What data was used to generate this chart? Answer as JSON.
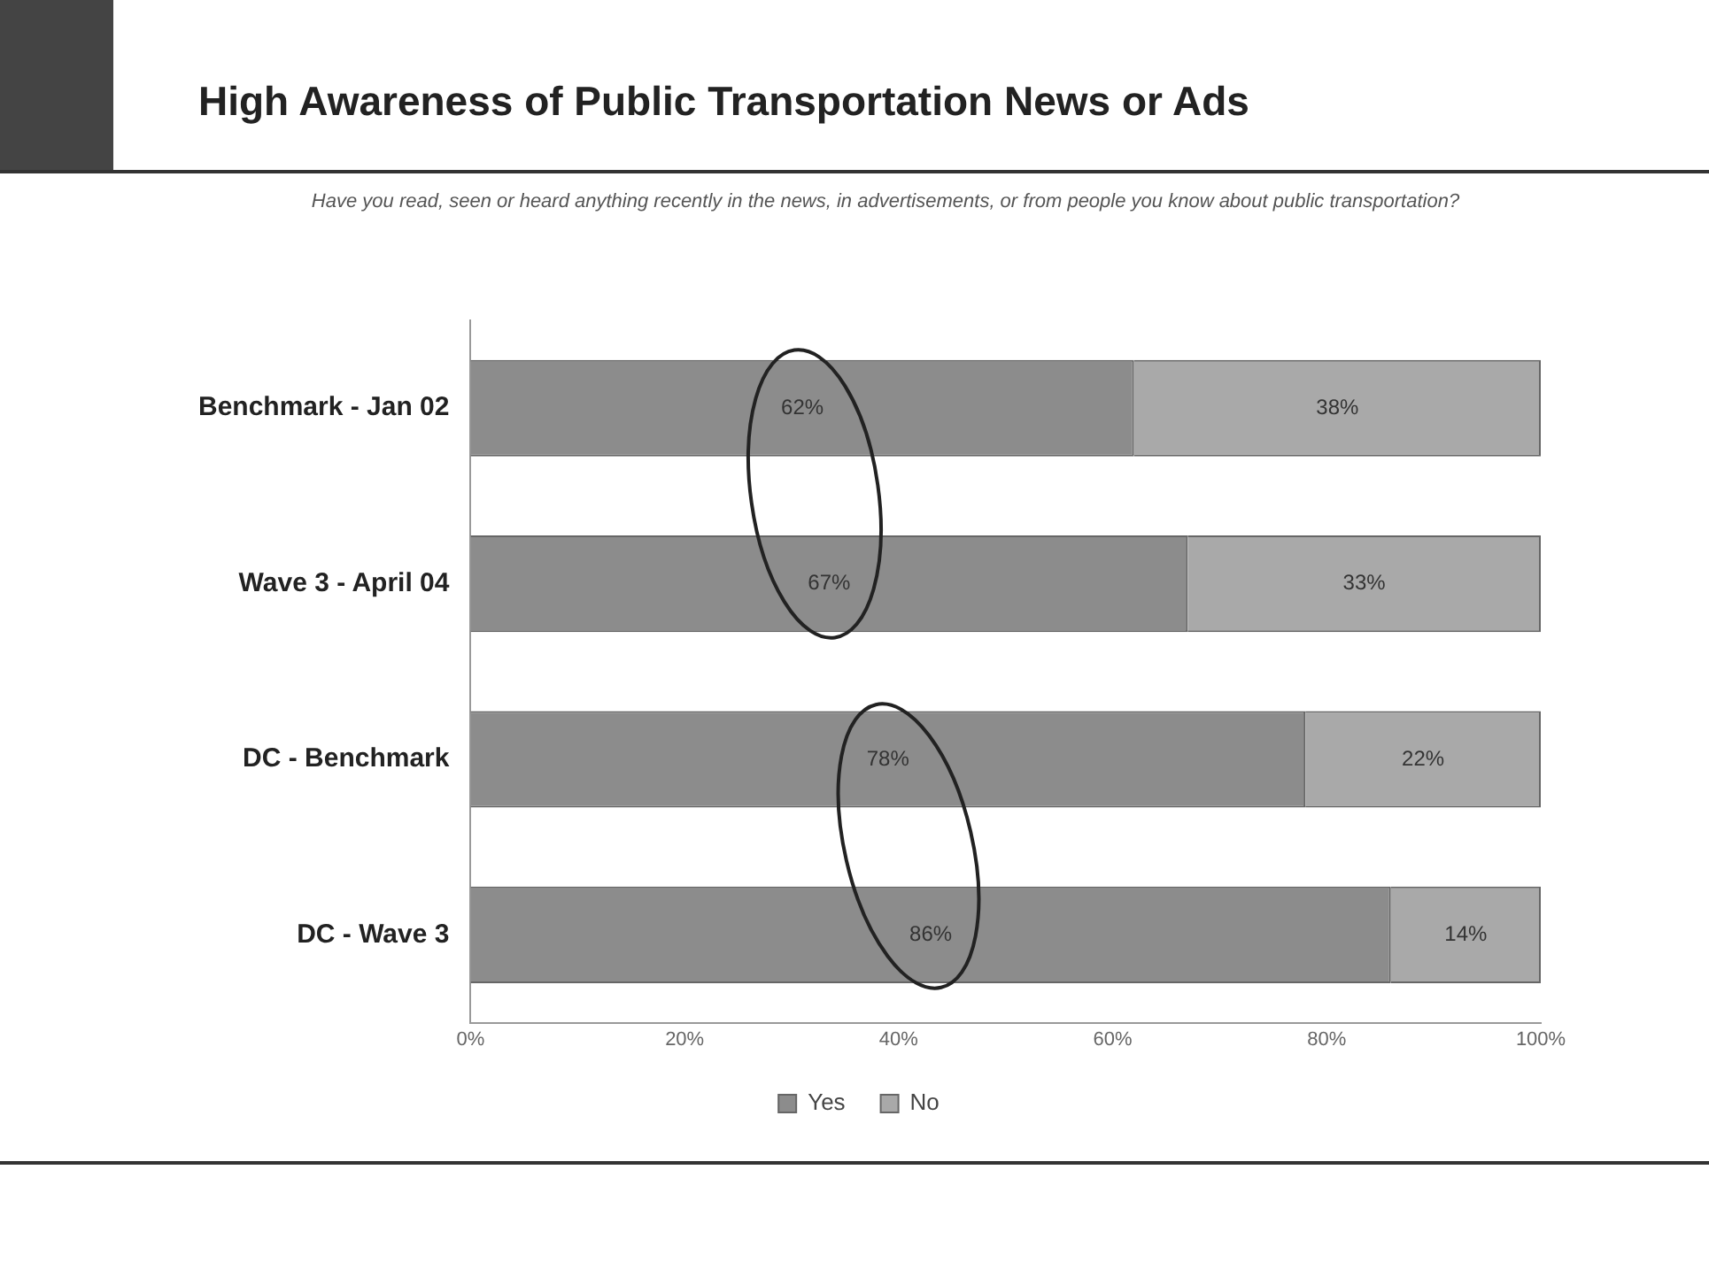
{
  "chart_data": {
    "type": "bar",
    "orientation": "horizontal",
    "stacked": true,
    "title": "High Awareness of Public Transportation News or Ads",
    "subtitle": "Have you read, seen or heard anything recently in the news, in advertisements, or from people you know about public transportation?",
    "categories": [
      "Benchmark - Jan 02",
      "Wave 3 - April 04",
      "DC - Benchmark",
      "DC - Wave 3"
    ],
    "series": [
      {
        "name": "Yes",
        "color": "#8c8c8c",
        "values": [
          62,
          67,
          78,
          86
        ],
        "value_labels": [
          "62%",
          "67%",
          "78%",
          "86%"
        ]
      },
      {
        "name": "No",
        "color": "#a9a9a9",
        "values": [
          38,
          33,
          22,
          14
        ],
        "value_labels": [
          "38%",
          "33%",
          "22%",
          "14%"
        ]
      }
    ],
    "xlim": [
      0,
      100
    ],
    "xticks": [
      {
        "value": 0,
        "label": "0%"
      },
      {
        "value": 20,
        "label": "20%"
      },
      {
        "value": 40,
        "label": "40%"
      },
      {
        "value": 60,
        "label": "60%"
      },
      {
        "value": 80,
        "label": "80%"
      },
      {
        "value": 100,
        "label": "100%"
      }
    ],
    "grid": false,
    "legend": "bottom"
  }
}
